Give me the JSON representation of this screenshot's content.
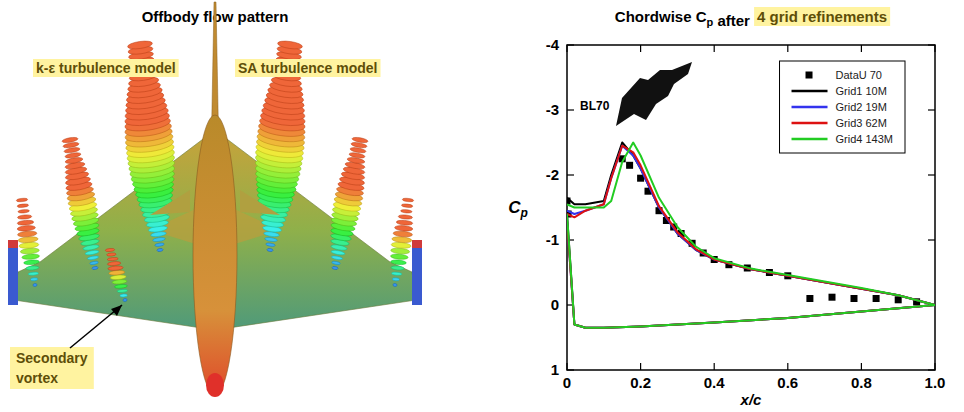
{
  "left_panel": {
    "title": "Offbody flow pattern",
    "labels": [
      "k-ε turbulence model",
      "SA turbulence model"
    ],
    "callout": "Secondary vortex"
  },
  "chart_data": {
    "type": "line",
    "title": "Chordwise Cp after 4 grid refinements",
    "x_label": "x/c",
    "y_label": "Cp",
    "annotation": "BL70",
    "xlim": [
      0,
      1
    ],
    "ylim": [
      1,
      -4
    ],
    "xticks": [
      0,
      0.2,
      0.4,
      0.6,
      0.8,
      {
        "value": 1,
        "label": "1.0"
      }
    ],
    "yticks": [
      -4,
      -3,
      -2,
      -1,
      0,
      1
    ],
    "legend": "upper right",
    "grid": false,
    "series": [
      {
        "name": "DataU 70",
        "type": "scatter",
        "marker": "square",
        "color": "#000000",
        "x": [
          0,
          0.003,
          0.15,
          0.17,
          0.2,
          0.22,
          0.25,
          0.27,
          0.29,
          0.31,
          0.34,
          0.37,
          0.4,
          0.44,
          0.49,
          0.55,
          0.6,
          0.66,
          0.72,
          0.78,
          0.84,
          0.9,
          0.95
        ],
        "values": [
          -1.6,
          -1.4,
          -2.25,
          -2.15,
          -1.95,
          -1.75,
          -1.45,
          -1.3,
          -1.2,
          -1.1,
          -0.95,
          -0.8,
          -0.7,
          -0.62,
          -0.57,
          -0.5,
          -0.45,
          -0.1,
          -0.12,
          -0.1,
          -0.1,
          -0.08,
          -0.05
        ]
      },
      {
        "name": "Grid1 10M",
        "type": "line",
        "color": "#000000",
        "x": [
          0,
          0.02,
          0.05,
          0.1,
          0.12,
          0.15,
          0.18,
          0.2,
          0.25,
          0.3,
          0.35,
          0.4,
          0.5,
          0.6,
          0.7,
          0.8,
          0.9,
          1.0,
          0.9,
          0.8,
          0.6,
          0.4,
          0.2,
          0.1,
          0.05,
          0.02,
          0
        ],
        "values": [
          -1.65,
          -1.55,
          -1.55,
          -1.6,
          -2.0,
          -2.5,
          -2.3,
          -2.1,
          -1.5,
          -1.1,
          -0.85,
          -0.7,
          -0.55,
          -0.45,
          -0.35,
          -0.25,
          -0.15,
          0,
          0.05,
          0.1,
          0.2,
          0.27,
          0.33,
          0.35,
          0.35,
          0.3,
          -1.4
        ]
      },
      {
        "name": "Grid2 19M",
        "type": "line",
        "color": "#3333ee",
        "x": [
          0,
          0.02,
          0.05,
          0.1,
          0.12,
          0.15,
          0.18,
          0.2,
          0.25,
          0.3,
          0.35,
          0.4,
          0.5,
          0.6,
          0.7,
          0.8,
          0.9,
          1.0,
          0.9,
          0.8,
          0.6,
          0.4,
          0.2,
          0.1,
          0.05,
          0.02,
          0
        ],
        "values": [
          -1.45,
          -1.4,
          -1.45,
          -1.55,
          -1.95,
          -2.45,
          -2.3,
          -2.1,
          -1.5,
          -1.1,
          -0.85,
          -0.7,
          -0.55,
          -0.45,
          -0.35,
          -0.25,
          -0.15,
          0,
          0.05,
          0.1,
          0.2,
          0.27,
          0.33,
          0.35,
          0.35,
          0.3,
          -1.3
        ]
      },
      {
        "name": "Grid3 62M",
        "type": "line",
        "color": "#dd1111",
        "x": [
          0,
          0.02,
          0.05,
          0.1,
          0.12,
          0.15,
          0.18,
          0.2,
          0.25,
          0.3,
          0.35,
          0.4,
          0.5,
          0.6,
          0.7,
          0.8,
          0.9,
          1.0,
          0.9,
          0.8,
          0.6,
          0.4,
          0.2,
          0.1,
          0.05,
          0.02,
          0
        ],
        "values": [
          -1.4,
          -1.35,
          -1.45,
          -1.55,
          -1.95,
          -2.45,
          -2.35,
          -2.15,
          -1.52,
          -1.12,
          -0.86,
          -0.7,
          -0.55,
          -0.45,
          -0.35,
          -0.25,
          -0.15,
          0,
          0.05,
          0.1,
          0.2,
          0.27,
          0.33,
          0.35,
          0.35,
          0.3,
          -1.3
        ]
      },
      {
        "name": "Grid4 143M",
        "type": "line",
        "color": "#22cc22",
        "x": [
          0,
          0.02,
          0.05,
          0.1,
          0.12,
          0.15,
          0.18,
          0.2,
          0.25,
          0.3,
          0.35,
          0.4,
          0.5,
          0.6,
          0.7,
          0.8,
          0.9,
          1.0,
          0.9,
          0.8,
          0.6,
          0.4,
          0.2,
          0.1,
          0.05,
          0.02,
          0
        ],
        "values": [
          -1.55,
          -1.5,
          -1.5,
          -1.5,
          -1.6,
          -2.2,
          -2.5,
          -2.3,
          -1.65,
          -1.2,
          -0.9,
          -0.72,
          -0.56,
          -0.46,
          -0.36,
          -0.26,
          -0.15,
          0,
          0.05,
          0.1,
          0.2,
          0.27,
          0.33,
          0.35,
          0.35,
          0.3,
          -1.4
        ]
      }
    ]
  }
}
